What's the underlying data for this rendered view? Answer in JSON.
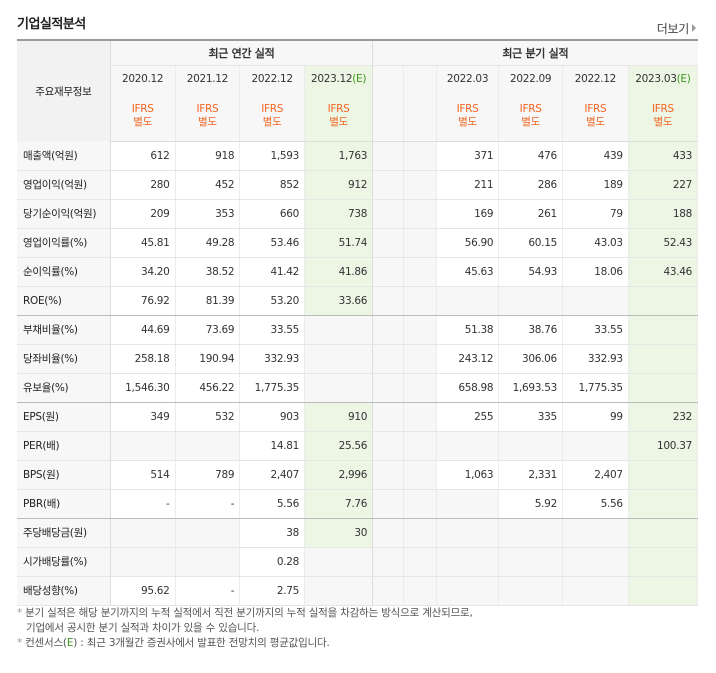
{
  "title": "기업실적분석",
  "more_label": "더보기",
  "row_header_label": "주요재무정보",
  "groups": {
    "annual": "최근 연간 실적",
    "quarter": "최근 분기 실적"
  },
  "annual_cols": [
    {
      "period": "2020.12",
      "est": "",
      "ifrs": "IFRS",
      "sep": "별도"
    },
    {
      "period": "2021.12",
      "est": "",
      "ifrs": "IFRS",
      "sep": "별도"
    },
    {
      "period": "2022.12",
      "est": "",
      "ifrs": "IFRS",
      "sep": "별도"
    },
    {
      "period": "2023.12",
      "est": "(E)",
      "ifrs": "IFRS",
      "sep": "별도"
    }
  ],
  "quarter_cols": [
    {
      "period": "",
      "est": "",
      "ifrs": "",
      "sep": ""
    },
    {
      "period": "",
      "est": "",
      "ifrs": "",
      "sep": ""
    },
    {
      "period": "2022.03",
      "est": "",
      "ifrs": "IFRS",
      "sep": "별도"
    },
    {
      "period": "2022.09",
      "est": "",
      "ifrs": "IFRS",
      "sep": "별도"
    },
    {
      "period": "2022.12",
      "est": "",
      "ifrs": "IFRS",
      "sep": "별도"
    },
    {
      "period": "2023.03",
      "est": "(E)",
      "ifrs": "IFRS",
      "sep": "별도"
    }
  ],
  "rows": [
    {
      "label": "매출액(억원)",
      "a": [
        "612",
        "918",
        "1,593",
        "1,763"
      ],
      "q": [
        "",
        "",
        "371",
        "476",
        "439",
        "433"
      ]
    },
    {
      "label": "영업이익(억원)",
      "a": [
        "280",
        "452",
        "852",
        "912"
      ],
      "q": [
        "",
        "",
        "211",
        "286",
        "189",
        "227"
      ]
    },
    {
      "label": "당기순이익(억원)",
      "a": [
        "209",
        "353",
        "660",
        "738"
      ],
      "q": [
        "",
        "",
        "169",
        "261",
        "79",
        "188"
      ]
    },
    {
      "label": "영업이익률(%)",
      "a": [
        "45.81",
        "49.28",
        "53.46",
        "51.74"
      ],
      "q": [
        "",
        "",
        "56.90",
        "60.15",
        "43.03",
        "52.43"
      ]
    },
    {
      "label": "순이익률(%)",
      "a": [
        "34.20",
        "38.52",
        "41.42",
        "41.86"
      ],
      "q": [
        "",
        "",
        "45.63",
        "54.93",
        "18.06",
        "43.46"
      ]
    },
    {
      "label": "ROE(%)",
      "a": [
        "76.92",
        "81.39",
        "53.20",
        "33.66"
      ],
      "q": [
        "",
        "",
        "",
        "",
        "",
        ""
      ]
    },
    {
      "label": "부채비율(%)",
      "a": [
        "44.69",
        "73.69",
        "33.55",
        ""
      ],
      "q": [
        "",
        "",
        "51.38",
        "38.76",
        "33.55",
        ""
      ]
    },
    {
      "label": "당좌비율(%)",
      "a": [
        "258.18",
        "190.94",
        "332.93",
        ""
      ],
      "q": [
        "",
        "",
        "243.12",
        "306.06",
        "332.93",
        ""
      ]
    },
    {
      "label": "유보율(%)",
      "a": [
        "1,546.30",
        "456.22",
        "1,775.35",
        ""
      ],
      "q": [
        "",
        "",
        "658.98",
        "1,693.53",
        "1,775.35",
        ""
      ]
    },
    {
      "label": "EPS(원)",
      "a": [
        "349",
        "532",
        "903",
        "910"
      ],
      "q": [
        "",
        "",
        "255",
        "335",
        "99",
        "232"
      ]
    },
    {
      "label": "PER(배)",
      "a": [
        "",
        "",
        "14.81",
        "25.56"
      ],
      "q": [
        "",
        "",
        "",
        "",
        "",
        "100.37"
      ]
    },
    {
      "label": "BPS(원)",
      "a": [
        "514",
        "789",
        "2,407",
        "2,996"
      ],
      "q": [
        "",
        "",
        "1,063",
        "2,331",
        "2,407",
        ""
      ]
    },
    {
      "label": "PBR(배)",
      "a": [
        "-",
        "-",
        "5.56",
        "7.76"
      ],
      "q": [
        "",
        "",
        "",
        "5.92",
        "5.56",
        ""
      ]
    },
    {
      "label": "주당배당금(원)",
      "a": [
        "",
        "",
        "38",
        "30"
      ],
      "q": [
        "",
        "",
        "",
        "",
        "",
        ""
      ]
    },
    {
      "label": "시가배당률(%)",
      "a": [
        "",
        "",
        "0.28",
        ""
      ],
      "q": [
        "",
        "",
        "",
        "",
        "",
        ""
      ]
    },
    {
      "label": "배당성향(%)",
      "a": [
        "95.62",
        "-",
        "2.75",
        ""
      ],
      "q": [
        "",
        "",
        "",
        "",
        "",
        ""
      ]
    }
  ],
  "notes": {
    "line1": "분기 실적은 해당 분기까지의 누적 실적에서 직전 분기까지의 누적 실적을 차감하는 방식으로 계산되므로,",
    "line2": "기업에서 공시한 분기 실적과 차이가 있을 수 있습니다.",
    "line3_pre": "컨센서스(",
    "line3_e": "E",
    "line3_post": ") : 최근 3개월간 증권사에서 발표한 전망치의 평균값입니다.",
    "bullet": "*"
  }
}
